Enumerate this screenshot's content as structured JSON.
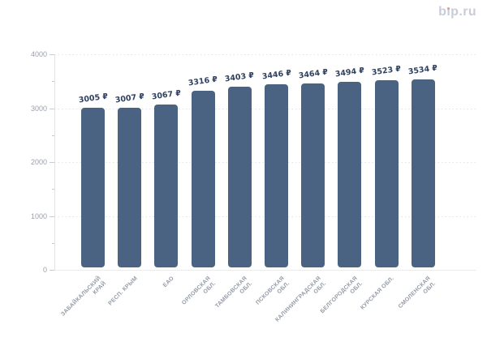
{
  "logo": {
    "text": "bip.ru",
    "parts": [
      "b",
      "ı",
      "p.ru"
    ],
    "color": "#c8cdd9",
    "dot_color": "#f0927c"
  },
  "chart_data": {
    "type": "bar",
    "title": "",
    "categories": [
      "ЗАБАЙКАЛЬСКИЙ КРАЙ",
      "РЕСП. КРЫМ",
      "ЕАО",
      "ОРЛОВСКАЯ ОБЛ.",
      "ТАМБОВСКАЯ ОБЛ.",
      "ПСКОВСКАЯ ОБЛ.",
      "КАЛИНИНГРАДСКАЯ ОБЛ.",
      "БЕЛГОРОДСКАЯ ОБЛ.",
      "КУРСКАЯ ОБЛ.",
      "СМОЛЕНСКАЯ ОБЛ."
    ],
    "category_lines": [
      [
        "ЗАБАЙКАЛЬСКИЙ",
        "КРАЙ"
      ],
      [
        "РЕСП. КРЫМ"
      ],
      [
        "ЕАО"
      ],
      [
        "ОРЛОВСКАЯ",
        "ОБЛ."
      ],
      [
        "ТАМБОВСКАЯ",
        "ОБЛ."
      ],
      [
        "ПСКОВСКАЯ",
        "ОБЛ."
      ],
      [
        "КАЛИНИНГРАДСКАЯ",
        "ОБЛ."
      ],
      [
        "БЕЛГОРОДСКАЯ",
        "ОБЛ."
      ],
      [
        "КУРСКАЯ ОБЛ."
      ],
      [
        "СМОЛЕНСКАЯ",
        "ОБЛ."
      ]
    ],
    "values": [
      3005,
      3007,
      3067,
      3316,
      3403,
      3446,
      3464,
      3494,
      3523,
      3534
    ],
    "value_labels": [
      "3005 ₽",
      "3007 ₽",
      "3067 ₽",
      "3316 ₽",
      "3403 ₽",
      "3446 ₽",
      "3464 ₽",
      "3494 ₽",
      "3523 ₽",
      "3534 ₽"
    ],
    "currency": "₽",
    "y_ticks": [
      0,
      1000,
      2000,
      3000,
      4000
    ],
    "y_minor_ticks": [
      500,
      1500,
      2500,
      3500
    ],
    "ylim": [
      0,
      4000
    ],
    "xlabel": "",
    "ylabel": "",
    "grid": "dotted horizontal lines at major y ticks",
    "legend": "none",
    "bar_color": "#4a6382",
    "value_label_color": "#304160",
    "axis_label_color": "#9aa1ac"
  }
}
